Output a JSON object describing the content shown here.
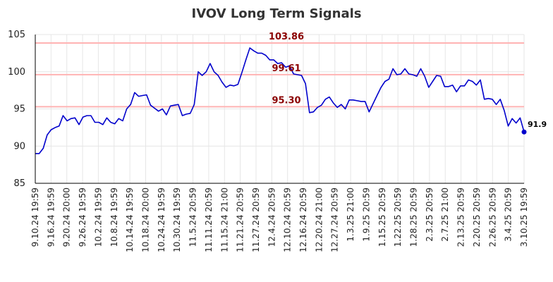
{
  "chart_data": {
    "type": "line",
    "title": "IVOV Long Term Signals",
    "xlabel": "",
    "ylabel": "",
    "ylim": [
      85,
      105
    ],
    "yticks": [
      85,
      90,
      95,
      100,
      105
    ],
    "grid": true,
    "line_color": "#0000cc",
    "hline_color": "#ffb3b3",
    "hline_label_color": "#8b0000",
    "x_tick_labels": [
      "9.10.24 19:59",
      "9.16.24 19:59",
      "9.20.24 20:00",
      "9.26.24 19:59",
      "10.2.24 19:59",
      "10.8.24 19:59",
      "10.14.24 19:59",
      "10.18.24 20:00",
      "10.24.24 19:59",
      "10.30.24 19:59",
      "11.5.24 20:59",
      "11.11.24 20:59",
      "11.15.24 21:00",
      "11.21.24 20:59",
      "11.27.24 20:59",
      "12.4.24 20:59",
      "12.10.24 20:59",
      "12.16.24 20:59",
      "12.20.24 21:00",
      "12.27.24 20:59",
      "1.3.25 21:00",
      "1.9.25 20:59",
      "1.15.25 20:59",
      "1.22.25 20:59",
      "1.28.25 20:59",
      "2.3.25 20:59",
      "2.7.25 21:00",
      "2.13.25 20:59",
      "2.20.25 20:59",
      "2.26.25 20:59",
      "3.4.25 20:59",
      "3.10.25 19:59"
    ],
    "horizontal_lines": [
      {
        "value": 103.86,
        "label": "103.86"
      },
      {
        "value": 99.61,
        "label": "99.61"
      },
      {
        "value": 95.3,
        "label": "95.30"
      }
    ],
    "series": [
      {
        "values": [
          89.0,
          89.0,
          89.7,
          91.5,
          92.2,
          92.5,
          92.7,
          94.1,
          93.4,
          93.7,
          93.8,
          92.9,
          93.9,
          94.1,
          94.1,
          93.2,
          93.2,
          92.9,
          93.8,
          93.2,
          93.0,
          93.7,
          93.4,
          95.0,
          95.6,
          97.2,
          96.7,
          96.8,
          96.9,
          95.5,
          95.1,
          94.7,
          95.0,
          94.2,
          95.4,
          95.5,
          95.6,
          94.1,
          94.3,
          94.4,
          95.6,
          100.0,
          99.5,
          100.0,
          101.1,
          100.0,
          99.5,
          98.6,
          97.9,
          98.2,
          98.1,
          98.3,
          99.9,
          101.6,
          103.2,
          102.8,
          102.5,
          102.5,
          102.2,
          101.6,
          101.6,
          101.1,
          101.2,
          100.6,
          100.8,
          99.7,
          99.6,
          99.5,
          98.4,
          94.5,
          94.6,
          95.2,
          95.5,
          96.3,
          96.6,
          95.8,
          95.2,
          95.6,
          95.0,
          96.2,
          96.2,
          96.1,
          96.0,
          96.0,
          94.6,
          95.7,
          96.8,
          97.9,
          98.7,
          99.0,
          100.4,
          99.6,
          99.7,
          100.4,
          99.7,
          99.6,
          99.4,
          100.4,
          99.4,
          97.9,
          98.7,
          99.5,
          99.4,
          98.0,
          98.0,
          98.2,
          97.3,
          98.1,
          98.1,
          98.9,
          98.7,
          98.2,
          98.9,
          96.3,
          96.4,
          96.3,
          95.6,
          96.3,
          94.8,
          92.7,
          93.7,
          93.1,
          93.8,
          91.9
        ]
      }
    ],
    "last_value_label": "91.9"
  }
}
